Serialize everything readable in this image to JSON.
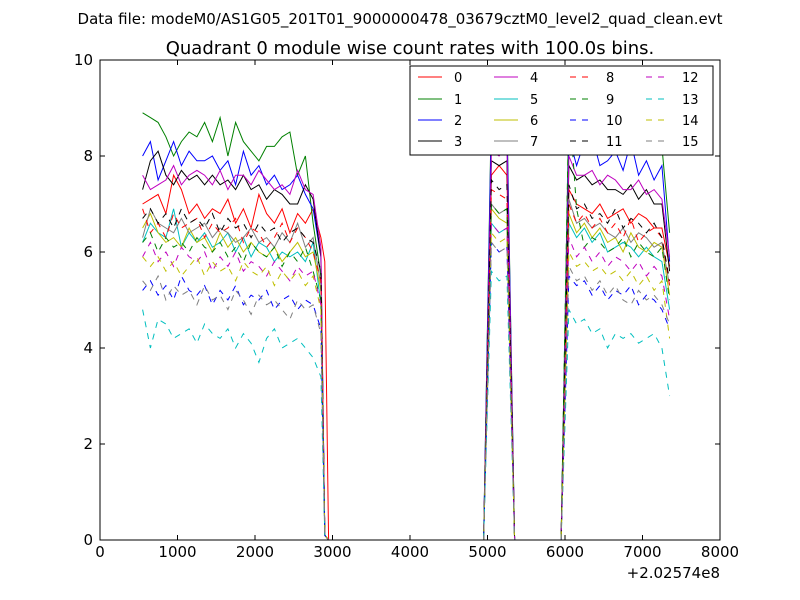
{
  "suptitle": "Data file: modeM0/AS1G05_201T01_9000000478_03679cztM0_level2_quad_clean.evt",
  "chart_data": {
    "type": "line",
    "title": "Quadrant 0 module wise count rates with 100.0s bins.",
    "xlabel": "",
    "ylabel": "",
    "xlim": [
      0,
      8000
    ],
    "ylim": [
      0,
      10
    ],
    "x_ticks": [
      "0",
      "1000",
      "2000",
      "3000",
      "4000",
      "5000",
      "6000",
      "7000",
      "8000"
    ],
    "y_ticks": [
      "0",
      "2",
      "4",
      "6",
      "8",
      "10"
    ],
    "x_offset_label": "+2.02574e8",
    "grid": false,
    "legend_position": "top-right",
    "legend_columns": 4,
    "x": [
      550,
      650,
      750,
      850,
      950,
      1050,
      1150,
      1250,
      1350,
      1450,
      1550,
      1650,
      1750,
      1850,
      1950,
      2050,
      2150,
      2250,
      2350,
      2450,
      2550,
      2650,
      2750,
      2850,
      2900,
      2950,
      3050,
      3500,
      4000,
      4500,
      4950,
      5050,
      5150,
      5250,
      5350,
      5450,
      5900,
      5950,
      6050,
      6150,
      6250,
      6350,
      6450,
      6550,
      6650,
      6750,
      6850,
      6950,
      7050,
      7150,
      7250,
      7350
    ],
    "series": [
      {
        "name": "0",
        "color": "#ff0000",
        "dash": "solid",
        "values": [
          7.0,
          7.1,
          7.2,
          6.8,
          7.6,
          7.3,
          6.8,
          7.0,
          6.7,
          6.9,
          6.8,
          7.1,
          6.6,
          6.9,
          6.5,
          7.2,
          6.8,
          6.6,
          6.9,
          6.4,
          6.8,
          6.6,
          6.9,
          6.3,
          5.8,
          0,
          0,
          0,
          0,
          0,
          0,
          7.6,
          7.8,
          7.6,
          0,
          0,
          0,
          0,
          7.3,
          7.0,
          6.9,
          6.8,
          7.0,
          6.7,
          6.8,
          6.9,
          6.6,
          6.8,
          6.7,
          6.5,
          6.5,
          5.7
        ]
      },
      {
        "name": "1",
        "color": "#008000",
        "dash": "solid",
        "values": [
          8.9,
          8.8,
          8.7,
          8.4,
          8.0,
          8.3,
          8.5,
          8.4,
          8.7,
          8.3,
          8.8,
          8.0,
          8.7,
          8.3,
          8.1,
          7.9,
          8.2,
          8.2,
          8.4,
          8.5,
          7.6,
          8.0,
          6.6,
          5.5,
          0.1,
          0,
          0,
          0,
          0,
          0,
          0,
          9.0,
          9.3,
          8.9,
          0,
          0,
          0,
          0,
          9.0,
          8.6,
          8.3,
          8.4,
          8.5,
          8.1,
          8.2,
          8.5,
          8.4,
          8.1,
          8.3,
          8.2,
          8.2,
          6.4
        ]
      },
      {
        "name": "2",
        "color": "#0000ff",
        "dash": "solid",
        "values": [
          8.0,
          8.3,
          7.5,
          7.9,
          8.3,
          7.8,
          8.1,
          7.9,
          7.9,
          8.0,
          7.7,
          7.9,
          7.4,
          8.1,
          7.6,
          7.8,
          7.4,
          7.6,
          7.3,
          7.4,
          7.6,
          7.2,
          6.9,
          5.9,
          0.1,
          0,
          0,
          0,
          0,
          0,
          0,
          8.8,
          8.5,
          8.7,
          0,
          0,
          0,
          0,
          8.4,
          7.8,
          8.3,
          8.4,
          7.8,
          7.9,
          8.1,
          7.7,
          8.3,
          7.6,
          7.9,
          7.5,
          7.8,
          5.8
        ]
      },
      {
        "name": "3",
        "color": "#000000",
        "dash": "solid",
        "values": [
          7.3,
          7.9,
          8.1,
          7.6,
          7.4,
          7.7,
          7.5,
          7.6,
          7.4,
          7.6,
          7.4,
          7.5,
          7.3,
          7.6,
          7.3,
          7.4,
          7.1,
          7.3,
          7.2,
          7.0,
          7.0,
          7.4,
          7.1,
          5.9,
          0.1,
          0,
          0,
          0,
          0,
          0,
          0,
          7.9,
          7.8,
          7.9,
          0,
          0,
          0,
          0,
          7.8,
          7.5,
          7.6,
          7.4,
          7.5,
          7.3,
          7.3,
          7.2,
          7.4,
          7.1,
          7.3,
          7.0,
          7.0,
          5.6
        ]
      },
      {
        "name": "4",
        "color": "#bf00bf",
        "dash": "solid",
        "values": [
          7.6,
          7.3,
          7.4,
          7.5,
          7.8,
          7.4,
          7.6,
          7.7,
          7.6,
          7.4,
          7.7,
          7.3,
          7.6,
          7.6,
          7.4,
          7.7,
          7.5,
          7.3,
          7.4,
          7.2,
          7.7,
          7.3,
          7.2,
          6.1,
          0.1,
          0,
          0,
          0,
          0,
          0,
          0,
          8.1,
          8.0,
          8.2,
          0,
          0,
          0,
          0,
          8.0,
          7.6,
          7.6,
          7.7,
          7.4,
          7.6,
          7.5,
          7.3,
          7.3,
          7.5,
          7.2,
          7.3,
          7.1,
          5.9
        ]
      },
      {
        "name": "5",
        "color": "#00bfbf",
        "dash": "solid",
        "values": [
          6.2,
          6.6,
          6.4,
          6.3,
          6.9,
          6.1,
          6.4,
          6.2,
          6.4,
          6.1,
          6.2,
          6.4,
          6.0,
          6.3,
          5.9,
          6.2,
          6.1,
          5.8,
          6.0,
          5.9,
          6.0,
          5.8,
          6.2,
          4.9,
          0.1,
          0,
          0,
          0,
          0,
          0,
          0,
          6.6,
          6.4,
          6.5,
          0,
          0,
          0,
          0,
          6.6,
          6.3,
          6.5,
          6.2,
          6.4,
          6.0,
          6.1,
          6.2,
          6.1,
          5.9,
          6.1,
          5.9,
          5.8,
          4.8
        ]
      },
      {
        "name": "6",
        "color": "#bfbf00",
        "dash": "solid",
        "values": [
          6.5,
          6.8,
          6.4,
          6.2,
          6.3,
          6.1,
          6.5,
          6.2,
          6.3,
          6.0,
          6.4,
          6.1,
          6.3,
          6.0,
          6.2,
          6.0,
          5.9,
          6.1,
          5.8,
          6.0,
          6.2,
          5.9,
          6.0,
          5.2,
          0.1,
          0,
          0,
          0,
          0,
          0,
          0,
          6.9,
          6.7,
          6.6,
          0,
          0,
          0,
          0,
          6.8,
          6.4,
          6.6,
          6.3,
          6.5,
          6.2,
          6.3,
          6.0,
          6.4,
          6.1,
          6.0,
          6.2,
          6.1,
          5.1
        ]
      },
      {
        "name": "7",
        "color": "#7f7f7f",
        "dash": "solid",
        "values": [
          6.3,
          6.9,
          6.6,
          6.5,
          6.4,
          6.7,
          6.4,
          6.5,
          6.6,
          6.3,
          6.5,
          6.4,
          6.2,
          6.3,
          6.5,
          6.2,
          6.3,
          6.1,
          6.4,
          6.2,
          6.6,
          6.1,
          6.3,
          5.3,
          0.1,
          0,
          0,
          0,
          0,
          0,
          0,
          7.0,
          6.8,
          6.9,
          0,
          0,
          0,
          0,
          7.1,
          6.6,
          6.7,
          6.5,
          6.6,
          6.4,
          6.3,
          6.5,
          6.2,
          6.4,
          6.3,
          6.1,
          6.2,
          5.3
        ]
      },
      {
        "name": "8",
        "color": "#ff0000",
        "dash": "dashed",
        "values": [
          6.9,
          6.4,
          6.6,
          6.3,
          6.8,
          6.5,
          6.6,
          6.7,
          6.3,
          6.6,
          6.4,
          6.5,
          6.7,
          6.2,
          6.5,
          6.4,
          6.1,
          6.3,
          6.6,
          6.2,
          6.5,
          6.3,
          6.0,
          5.4,
          0.1,
          0,
          0,
          0,
          0,
          0,
          0,
          7.3,
          7.2,
          7.1,
          0,
          0,
          0,
          0,
          7.0,
          6.6,
          6.8,
          6.5,
          6.7,
          6.4,
          6.6,
          6.3,
          6.7,
          6.2,
          6.4,
          6.5,
          6.3,
          5.3
        ]
      },
      {
        "name": "9",
        "color": "#008000",
        "dash": "dashed",
        "values": [
          6.2,
          6.4,
          6.0,
          6.3,
          6.1,
          6.2,
          6.0,
          6.3,
          6.1,
          6.0,
          6.2,
          5.9,
          6.1,
          5.8,
          6.2,
          6.0,
          5.9,
          6.1,
          5.7,
          6.0,
          5.8,
          6.1,
          5.6,
          5.0,
          0.1,
          0,
          0,
          0,
          0,
          0,
          0,
          7.0,
          6.8,
          6.9,
          0,
          0,
          0,
          0,
          9.2,
          6.9,
          6.1,
          6.3,
          6.2,
          6.0,
          6.1,
          6.3,
          5.9,
          6.2,
          6.0,
          5.9,
          6.1,
          5.0
        ]
      },
      {
        "name": "10",
        "color": "#0000ff",
        "dash": "dashed",
        "values": [
          5.2,
          5.4,
          5.1,
          5.3,
          5.0,
          5.5,
          5.2,
          5.1,
          5.3,
          4.9,
          5.2,
          5.0,
          5.3,
          4.9,
          5.1,
          5.0,
          5.2,
          4.8,
          5.0,
          5.1,
          4.8,
          5.0,
          4.9,
          4.4,
          0.1,
          0,
          0,
          0,
          0,
          0,
          0,
          6.2,
          6.0,
          6.1,
          0,
          0,
          0,
          0,
          5.5,
          5.3,
          5.4,
          5.1,
          5.3,
          5.0,
          5.2,
          5.1,
          5.3,
          4.9,
          5.1,
          5.0,
          4.8,
          4.4
        ]
      },
      {
        "name": "11",
        "color": "#000000",
        "dash": "dashed",
        "values": [
          6.7,
          6.9,
          6.6,
          6.8,
          6.5,
          6.9,
          6.6,
          6.7,
          6.5,
          6.8,
          6.4,
          6.7,
          6.5,
          6.6,
          6.3,
          6.6,
          6.4,
          6.5,
          6.2,
          6.4,
          6.5,
          6.3,
          6.2,
          5.6,
          0.1,
          0,
          0,
          0,
          0,
          0,
          0,
          7.5,
          7.3,
          7.4,
          0,
          0,
          0,
          0,
          7.4,
          6.9,
          7.0,
          6.7,
          6.8,
          6.6,
          6.9,
          6.5,
          6.7,
          6.6,
          6.4,
          6.6,
          6.3,
          5.4
        ]
      },
      {
        "name": "12",
        "color": "#bf00bf",
        "dash": "dashed",
        "values": [
          5.9,
          6.2,
          5.8,
          6.0,
          5.7,
          6.1,
          5.9,
          5.8,
          6.0,
          5.6,
          5.9,
          5.7,
          6.0,
          5.6,
          5.8,
          5.7,
          5.5,
          5.8,
          5.6,
          5.4,
          5.7,
          5.5,
          5.6,
          4.9,
          0.1,
          0,
          0,
          0,
          0,
          0,
          0,
          6.6,
          6.4,
          6.5,
          0,
          0,
          0,
          0,
          6.3,
          5.9,
          6.1,
          5.8,
          6.0,
          5.7,
          5.9,
          5.8,
          5.6,
          5.8,
          5.5,
          5.7,
          5.5,
          4.6
        ]
      },
      {
        "name": "13",
        "color": "#00bfbf",
        "dash": "dashed",
        "values": [
          4.8,
          4.0,
          4.6,
          4.5,
          4.2,
          4.3,
          4.4,
          4.1,
          4.5,
          4.3,
          4.2,
          4.4,
          4.0,
          4.3,
          4.1,
          3.7,
          4.2,
          4.4,
          4.0,
          4.1,
          4.2,
          4.0,
          3.8,
          3.4,
          0.1,
          0,
          0,
          0,
          0,
          0,
          0,
          5.6,
          5.4,
          5.5,
          0,
          0,
          0,
          0,
          4.8,
          4.5,
          4.6,
          4.3,
          4.4,
          4.0,
          4.3,
          4.2,
          4.3,
          4.1,
          4.2,
          4.3,
          4.0,
          3.0
        ]
      },
      {
        "name": "14",
        "color": "#bfbf00",
        "dash": "dashed",
        "values": [
          5.9,
          5.7,
          5.9,
          5.6,
          5.8,
          5.5,
          5.7,
          5.9,
          5.5,
          5.8,
          5.6,
          5.7,
          5.4,
          5.8,
          5.6,
          5.5,
          5.7,
          5.3,
          5.6,
          5.4,
          5.6,
          5.3,
          5.5,
          4.8,
          0.1,
          0,
          0,
          0,
          0,
          0,
          0,
          6.4,
          6.2,
          6.3,
          0,
          0,
          0,
          0,
          6.0,
          5.7,
          5.8,
          5.6,
          5.7,
          5.5,
          5.6,
          5.4,
          5.6,
          5.3,
          5.5,
          5.2,
          5.4,
          4.2
        ]
      },
      {
        "name": "15",
        "color": "#7f7f7f",
        "dash": "dashed",
        "values": [
          5.4,
          5.2,
          5.5,
          5.0,
          5.3,
          5.1,
          5.2,
          4.9,
          5.3,
          5.0,
          5.1,
          4.8,
          5.2,
          5.0,
          4.7,
          5.1,
          4.9,
          5.0,
          4.8,
          4.6,
          5.0,
          4.8,
          4.9,
          4.3,
          0.1,
          0,
          0,
          0,
          0,
          0,
          0,
          6.2,
          6.0,
          6.1,
          0,
          0,
          0,
          0,
          5.7,
          5.4,
          5.5,
          5.2,
          5.4,
          5.1,
          5.3,
          5.0,
          4.9,
          5.2,
          5.0,
          5.1,
          4.9,
          4.5
        ]
      }
    ]
  }
}
